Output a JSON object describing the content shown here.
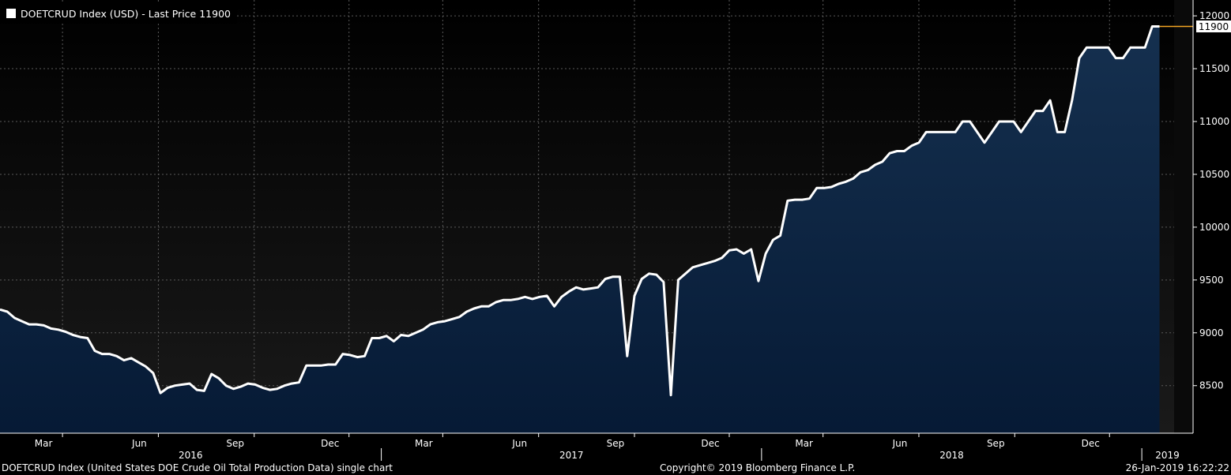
{
  "legend": {
    "label": "DOETCRUD Index (USD) - Last Price 11900"
  },
  "last_price_tag": "11900",
  "footer": {
    "left": "DOETCRUD Index (United States DOE Crude Oil Total Production Data) single chart",
    "center": "Copyright© 2019 Bloomberg Finance L.P.",
    "right": "26-Jan-2019 16:22:22"
  },
  "colors": {
    "line": "#ffffff",
    "area_top": "#15304f",
    "area_bottom": "#061a35",
    "last_price_marker": "#f5a623",
    "background": "#000000"
  },
  "chart_data": {
    "type": "area",
    "title": "",
    "xlabel": "",
    "ylabel": "",
    "ylim": [
      8050,
      12150
    ],
    "y_ticks": [
      8500,
      9000,
      9500,
      10000,
      10500,
      11000,
      11500,
      12000
    ],
    "x_month_labels": [
      "Mar",
      "Jun",
      "Sep",
      "Dec",
      "Mar",
      "Jun",
      "Sep",
      "Dec",
      "Mar",
      "Jun",
      "Sep",
      "Dec"
    ],
    "x_month_ticks": [
      "2016-03",
      "2016-06",
      "2016-09",
      "2016-12",
      "2017-03",
      "2017-06",
      "2017-09",
      "2017-12",
      "2018-03",
      "2018-06",
      "2018-09",
      "2018-12"
    ],
    "x_year_labels": [
      "2016",
      "2017",
      "2018",
      "2019"
    ],
    "x_range": [
      "2016-01-01",
      "2019-02-01"
    ],
    "grid": true,
    "series": [
      {
        "name": "DOETCRUD Index",
        "points": [
          [
            "2016-01-01",
            9220
          ],
          [
            "2016-01-08",
            9200
          ],
          [
            "2016-01-15",
            9140
          ],
          [
            "2016-01-22",
            9110
          ],
          [
            "2016-01-29",
            9080
          ],
          [
            "2016-02-05",
            9080
          ],
          [
            "2016-02-12",
            9070
          ],
          [
            "2016-02-19",
            9040
          ],
          [
            "2016-02-26",
            9030
          ],
          [
            "2016-03-04",
            9010
          ],
          [
            "2016-03-11",
            8980
          ],
          [
            "2016-03-18",
            8960
          ],
          [
            "2016-03-25",
            8950
          ],
          [
            "2016-04-01",
            8830
          ],
          [
            "2016-04-08",
            8800
          ],
          [
            "2016-04-15",
            8800
          ],
          [
            "2016-04-22",
            8780
          ],
          [
            "2016-04-29",
            8740
          ],
          [
            "2016-05-06",
            8760
          ],
          [
            "2016-05-13",
            8720
          ],
          [
            "2016-05-20",
            8680
          ],
          [
            "2016-05-27",
            8620
          ],
          [
            "2016-06-03",
            8430
          ],
          [
            "2016-06-10",
            8480
          ],
          [
            "2016-06-17",
            8500
          ],
          [
            "2016-06-24",
            8510
          ],
          [
            "2016-07-01",
            8520
          ],
          [
            "2016-07-08",
            8460
          ],
          [
            "2016-07-15",
            8450
          ],
          [
            "2016-07-22",
            8610
          ],
          [
            "2016-07-29",
            8570
          ],
          [
            "2016-08-05",
            8500
          ],
          [
            "2016-08-12",
            8470
          ],
          [
            "2016-08-19",
            8490
          ],
          [
            "2016-08-26",
            8520
          ],
          [
            "2016-09-02",
            8510
          ],
          [
            "2016-09-09",
            8480
          ],
          [
            "2016-09-16",
            8460
          ],
          [
            "2016-09-23",
            8470
          ],
          [
            "2016-09-30",
            8500
          ],
          [
            "2016-10-07",
            8520
          ],
          [
            "2016-10-14",
            8530
          ],
          [
            "2016-10-21",
            8690
          ],
          [
            "2016-10-28",
            8690
          ],
          [
            "2016-11-04",
            8690
          ],
          [
            "2016-11-11",
            8700
          ],
          [
            "2016-11-18",
            8700
          ],
          [
            "2016-11-25",
            8800
          ],
          [
            "2016-12-02",
            8790
          ],
          [
            "2016-12-09",
            8770
          ],
          [
            "2016-12-16",
            8780
          ],
          [
            "2016-12-23",
            8950
          ],
          [
            "2016-12-30",
            8950
          ],
          [
            "2017-01-06",
            8970
          ],
          [
            "2017-01-13",
            8920
          ],
          [
            "2017-01-20",
            8980
          ],
          [
            "2017-01-27",
            8970
          ],
          [
            "2017-02-03",
            9000
          ],
          [
            "2017-02-10",
            9030
          ],
          [
            "2017-02-17",
            9080
          ],
          [
            "2017-02-24",
            9100
          ],
          [
            "2017-03-03",
            9110
          ],
          [
            "2017-03-10",
            9130
          ],
          [
            "2017-03-17",
            9150
          ],
          [
            "2017-03-24",
            9200
          ],
          [
            "2017-03-31",
            9230
          ],
          [
            "2017-04-07",
            9250
          ],
          [
            "2017-04-14",
            9250
          ],
          [
            "2017-04-21",
            9290
          ],
          [
            "2017-04-28",
            9310
          ],
          [
            "2017-05-05",
            9310
          ],
          [
            "2017-05-12",
            9320
          ],
          [
            "2017-05-19",
            9340
          ],
          [
            "2017-05-26",
            9320
          ],
          [
            "2017-06-02",
            9340
          ],
          [
            "2017-06-09",
            9350
          ],
          [
            "2017-06-16",
            9250
          ],
          [
            "2017-06-23",
            9340
          ],
          [
            "2017-06-30",
            9390
          ],
          [
            "2017-07-07",
            9430
          ],
          [
            "2017-07-14",
            9410
          ],
          [
            "2017-07-21",
            9420
          ],
          [
            "2017-07-28",
            9430
          ],
          [
            "2017-08-04",
            9510
          ],
          [
            "2017-08-11",
            9530
          ],
          [
            "2017-08-18",
            9530
          ],
          [
            "2017-08-25",
            8780
          ],
          [
            "2017-09-01",
            9350
          ],
          [
            "2017-09-08",
            9510
          ],
          [
            "2017-09-15",
            9560
          ],
          [
            "2017-09-22",
            9550
          ],
          [
            "2017-09-29",
            9480
          ],
          [
            "2017-10-06",
            8410
          ],
          [
            "2017-10-13",
            9500
          ],
          [
            "2017-10-20",
            9560
          ],
          [
            "2017-10-27",
            9620
          ],
          [
            "2017-11-03",
            9640
          ],
          [
            "2017-11-10",
            9660
          ],
          [
            "2017-11-17",
            9680
          ],
          [
            "2017-11-24",
            9710
          ],
          [
            "2017-12-01",
            9780
          ],
          [
            "2017-12-08",
            9790
          ],
          [
            "2017-12-15",
            9750
          ],
          [
            "2017-12-22",
            9790
          ],
          [
            "2017-12-29",
            9490
          ],
          [
            "2018-01-05",
            9750
          ],
          [
            "2018-01-12",
            9880
          ],
          [
            "2018-01-19",
            9920
          ],
          [
            "2018-01-26",
            10250
          ],
          [
            "2018-02-02",
            10260
          ],
          [
            "2018-02-09",
            10260
          ],
          [
            "2018-02-16",
            10270
          ],
          [
            "2018-02-23",
            10370
          ],
          [
            "2018-03-02",
            10370
          ],
          [
            "2018-03-09",
            10380
          ],
          [
            "2018-03-16",
            10410
          ],
          [
            "2018-03-23",
            10430
          ],
          [
            "2018-03-30",
            10460
          ],
          [
            "2018-04-06",
            10520
          ],
          [
            "2018-04-13",
            10540
          ],
          [
            "2018-04-20",
            10590
          ],
          [
            "2018-04-27",
            10620
          ],
          [
            "2018-05-04",
            10700
          ],
          [
            "2018-05-11",
            10720
          ],
          [
            "2018-05-18",
            10720
          ],
          [
            "2018-05-25",
            10770
          ],
          [
            "2018-06-01",
            10800
          ],
          [
            "2018-06-08",
            10900
          ],
          [
            "2018-06-15",
            10900
          ],
          [
            "2018-06-22",
            10900
          ],
          [
            "2018-06-29",
            10900
          ],
          [
            "2018-07-06",
            10900
          ],
          [
            "2018-07-13",
            11000
          ],
          [
            "2018-07-20",
            11000
          ],
          [
            "2018-07-27",
            10900
          ],
          [
            "2018-08-03",
            10800
          ],
          [
            "2018-08-10",
            10900
          ],
          [
            "2018-08-17",
            11000
          ],
          [
            "2018-08-24",
            11000
          ],
          [
            "2018-08-31",
            11000
          ],
          [
            "2018-09-07",
            10900
          ],
          [
            "2018-09-14",
            11000
          ],
          [
            "2018-09-21",
            11100
          ],
          [
            "2018-09-28",
            11100
          ],
          [
            "2018-10-05",
            11200
          ],
          [
            "2018-10-12",
            10900
          ],
          [
            "2018-10-19",
            10900
          ],
          [
            "2018-10-26",
            11200
          ],
          [
            "2018-11-02",
            11600
          ],
          [
            "2018-11-09",
            11700
          ],
          [
            "2018-11-16",
            11700
          ],
          [
            "2018-11-23",
            11700
          ],
          [
            "2018-11-30",
            11700
          ],
          [
            "2018-12-07",
            11600
          ],
          [
            "2018-12-14",
            11600
          ],
          [
            "2018-12-21",
            11700
          ],
          [
            "2018-12-28",
            11700
          ],
          [
            "2019-01-04",
            11700
          ],
          [
            "2019-01-11",
            11900
          ],
          [
            "2019-01-18",
            11900
          ]
        ]
      }
    ]
  }
}
